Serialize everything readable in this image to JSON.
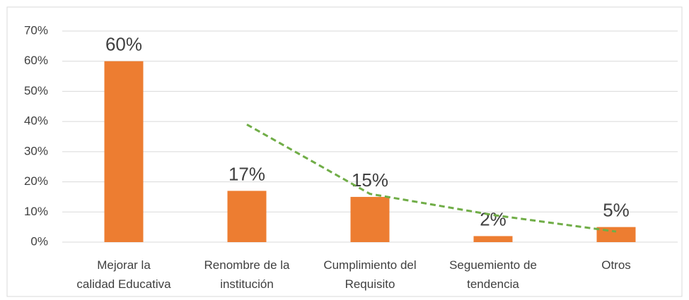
{
  "chart_data": {
    "type": "bar",
    "categories": [
      "Mejorar la\ncalidad Educativa",
      "Renombre de la\ninstitución",
      "Cumplimiento del\nRequisito",
      "Seguemiento de\ntendencia",
      "Otros"
    ],
    "values": [
      60,
      17,
      15,
      2,
      5
    ],
    "value_labels": [
      "60%",
      "17%",
      "15%",
      "2%",
      "5%"
    ],
    "color": "#ed7d31",
    "trendline": {
      "color": "#70ad47",
      "values": [
        null,
        39,
        16,
        9,
        3.5
      ]
    },
    "ylim": [
      0,
      70
    ],
    "yticks": [
      {
        "value": 0,
        "label": "0%"
      },
      {
        "value": 10,
        "label": "10%"
      },
      {
        "value": 20,
        "label": "20%"
      },
      {
        "value": 30,
        "label": "30%"
      },
      {
        "value": 40,
        "label": "40%"
      },
      {
        "value": 50,
        "label": "50%"
      },
      {
        "value": 60,
        "label": "60%"
      },
      {
        "value": 70,
        "label": "70%"
      }
    ],
    "grid": true
  }
}
